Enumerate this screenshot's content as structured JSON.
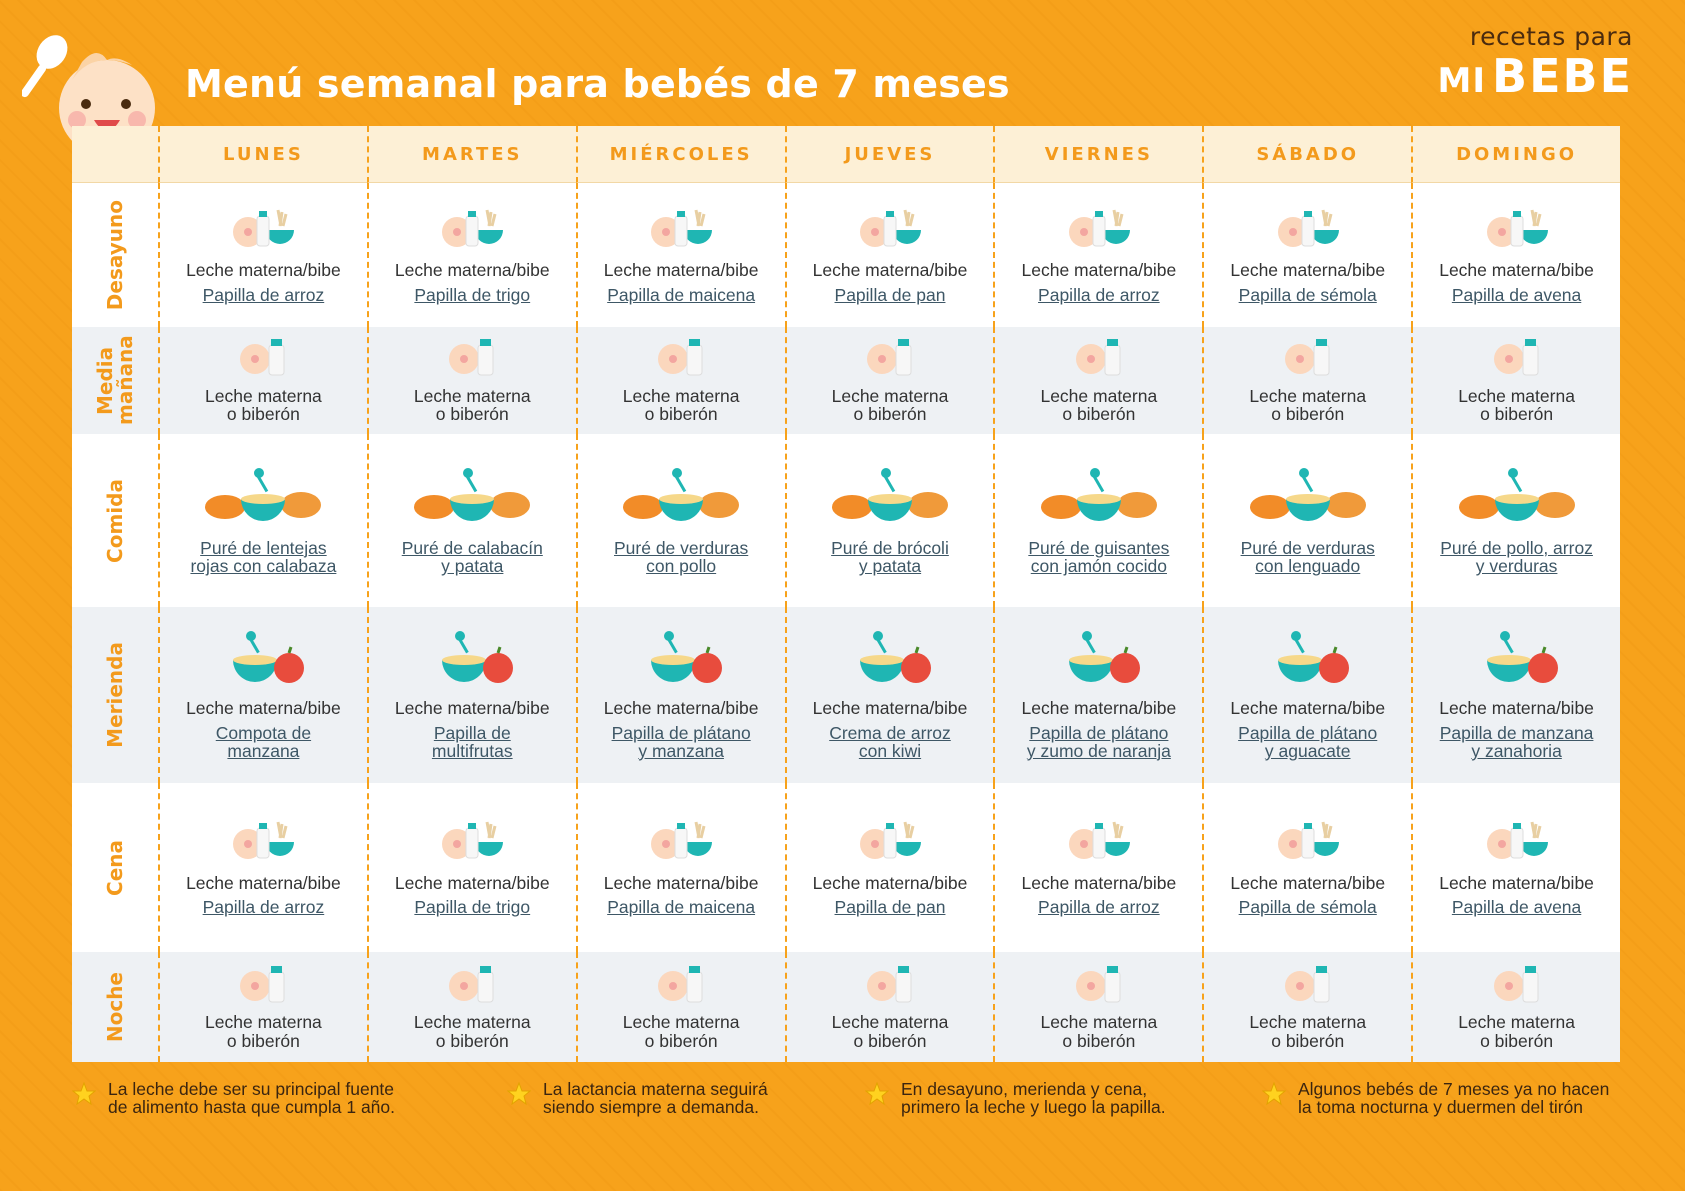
{
  "title": "Menú semanal para bebés de 7 meses",
  "brand": {
    "top": "recetas para",
    "mi": "MI",
    "bebe": "BEBE"
  },
  "days": [
    "LUNES",
    "MARTES",
    "MIÉRCOLES",
    "JUEVES",
    "VIERNES",
    "SÁBADO",
    "DOMINGO"
  ],
  "rows": [
    {
      "label": "Desayuno",
      "icon": "breakfast-icon",
      "cells": [
        {
          "line1": "Leche materna/bibe",
          "link": "Papilla de arroz"
        },
        {
          "line1": "Leche materna/bibe",
          "link": "Papilla de trigo"
        },
        {
          "line1": "Leche materna/bibe",
          "link": "Papilla de maicena"
        },
        {
          "line1": "Leche materna/bibe",
          "link": "Papilla de pan"
        },
        {
          "line1": "Leche materna/bibe",
          "link": "Papilla de arroz"
        },
        {
          "line1": "Leche materna/bibe",
          "link": "Papilla de sémola"
        },
        {
          "line1": "Leche materna/bibe",
          "link": "Papilla de avena"
        }
      ]
    },
    {
      "label": "Media mañana",
      "icon": "milk-icon",
      "cells": [
        {
          "line1": "Leche materna",
          "line2": "o biberón"
        },
        {
          "line1": "Leche materna",
          "line2": "o biberón"
        },
        {
          "line1": "Leche materna",
          "line2": "o biberón"
        },
        {
          "line1": "Leche materna",
          "line2": "o biberón"
        },
        {
          "line1": "Leche materna",
          "line2": "o biberón"
        },
        {
          "line1": "Leche materna",
          "line2": "o biberón"
        },
        {
          "line1": "Leche materna",
          "line2": "o biberón"
        }
      ]
    },
    {
      "label": "Comida",
      "icon": "puree-icon",
      "cells": [
        {
          "link": "Puré de lentejas",
          "link2": "rojas con calabaza"
        },
        {
          "link": "Puré de calabacín",
          "link2": "y patata"
        },
        {
          "link": "Puré de verduras",
          "link2": "con pollo"
        },
        {
          "link": "Puré de brócoli",
          "link2": "y patata"
        },
        {
          "link": "Puré de guisantes",
          "link2": "con jamón cocido"
        },
        {
          "link": "Puré de verduras",
          "link2": "con lenguado"
        },
        {
          "link": "Puré de pollo, arroz",
          "link2": "y verduras"
        }
      ]
    },
    {
      "label": "Merienda",
      "icon": "fruit-icon",
      "cells": [
        {
          "line1": "Leche materna/bibe",
          "link": "Compota de",
          "link2": "manzana"
        },
        {
          "line1": "Leche materna/bibe",
          "link": "Papilla de",
          "link2": "multifrutas"
        },
        {
          "line1": "Leche materna/bibe",
          "link": "Papilla de plátano",
          "link2": "y manzana"
        },
        {
          "line1": "Leche materna/bibe",
          "link": "Crema de arroz",
          "link2": "con kiwi"
        },
        {
          "line1": "Leche materna/bibe",
          "link": "Papilla de plátano",
          "link2": "y zumo de naranja"
        },
        {
          "line1": "Leche materna/bibe",
          "link": "Papilla de plátano",
          "link2": "y aguacate"
        },
        {
          "line1": "Leche materna/bibe",
          "link": "Papilla de manzana",
          "link2": "y zanahoria"
        }
      ]
    },
    {
      "label": "Cena",
      "icon": "breakfast-icon",
      "cells": [
        {
          "line1": "Leche materna/bibe",
          "link": "Papilla de arroz"
        },
        {
          "line1": "Leche materna/bibe",
          "link": "Papilla de trigo"
        },
        {
          "line1": "Leche materna/bibe",
          "link": "Papilla de maicena"
        },
        {
          "line1": "Leche materna/bibe",
          "link": "Papilla de pan"
        },
        {
          "line1": "Leche materna/bibe",
          "link": "Papilla de arroz"
        },
        {
          "line1": "Leche materna/bibe",
          "link": "Papilla de sémola"
        },
        {
          "line1": "Leche materna/bibe",
          "link": "Papilla de avena"
        }
      ]
    },
    {
      "label": "Noche",
      "icon": "milk-icon",
      "cells": [
        {
          "line1": "Leche materna",
          "line2": "o biberón"
        },
        {
          "line1": "Leche materna",
          "line2": "o biberón"
        },
        {
          "line1": "Leche materna",
          "line2": "o biberón"
        },
        {
          "line1": "Leche materna",
          "line2": "o biberón"
        },
        {
          "line1": "Leche materna",
          "line2": "o biberón"
        },
        {
          "line1": "Leche materna",
          "line2": "o biberón"
        },
        {
          "line1": "Leche materna",
          "line2": "o biberón"
        }
      ]
    }
  ],
  "notes": [
    {
      "line1": "La leche debe ser su principal fuente",
      "line2": "de alimento hasta que cumpla 1 año."
    },
    {
      "line1": "La lactancia materna seguirá",
      "line2": "siendo siempre a demanda."
    },
    {
      "line1": "En desayuno, merienda y cena,",
      "line2": "primero la leche y luego la papilla."
    },
    {
      "line1": "Algunos bebés de 7 meses ya no hacen",
      "line2": "la toma nocturna y duermen del tirón"
    }
  ],
  "colors": {
    "background": "#f7a21b",
    "header_row": "#fdf0d6",
    "accent_text": "#f39a1c",
    "teal": "#1fb6b3",
    "shaded_row": "#eef1f4"
  }
}
